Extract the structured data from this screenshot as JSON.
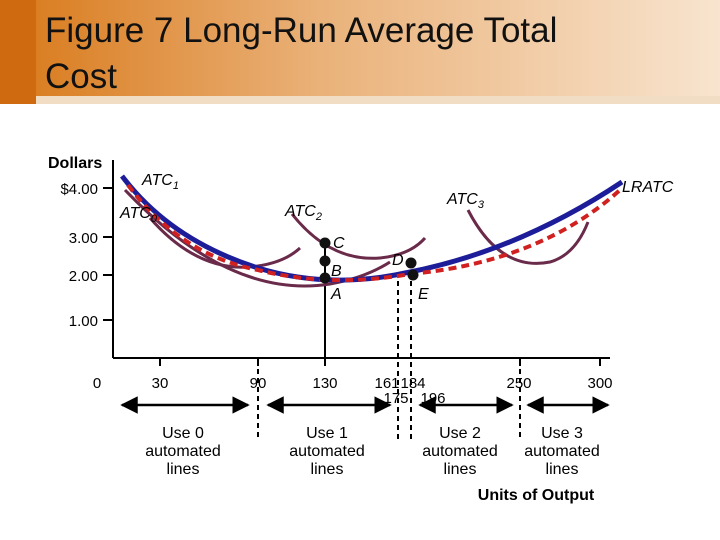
{
  "title_lines": [
    "Figure 7 Long-Run Average Total",
    "Cost"
  ],
  "y_axis": {
    "label": "Dollars",
    "ticks": [
      "$4.00",
      "3.00",
      "2.00",
      "1.00"
    ]
  },
  "x_axis": {
    "label": "Units of Output",
    "origin": "0",
    "ticks": [
      "30",
      "90",
      "130",
      "161",
      "184",
      "175",
      "196",
      "250",
      "300"
    ]
  },
  "curves": [
    {
      "name": "ATC",
      "sub": "0"
    },
    {
      "name": "ATC",
      "sub": "1"
    },
    {
      "name": "ATC",
      "sub": "2"
    },
    {
      "name": "ATC",
      "sub": "3"
    },
    {
      "name": "LRATC"
    }
  ],
  "points": [
    "C",
    "B",
    "A",
    "D",
    "E"
  ],
  "ranges": [
    [
      "Use 0",
      "automated",
      "lines"
    ],
    [
      "Use 1",
      "automated",
      "lines"
    ],
    [
      "Use 2",
      "automated",
      "lines"
    ],
    [
      "Use 3",
      "automated",
      "lines"
    ]
  ]
}
